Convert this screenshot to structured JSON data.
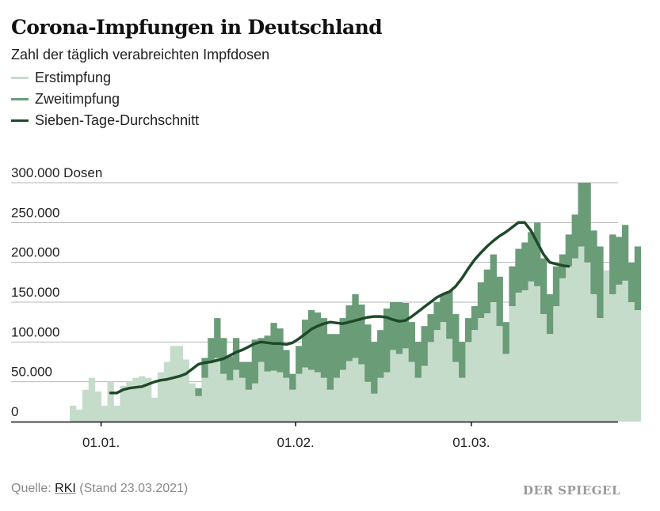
{
  "header": {
    "title": "Corona-Impfungen in Deutschland",
    "subtitle": "Zahl der täglich verabreichten Impfdosen"
  },
  "legend": [
    {
      "label": "Erstimpfung",
      "color": "#c6dccb"
    },
    {
      "label": "Zweitimpfung",
      "color": "#6a9c78"
    },
    {
      "label": "Sieben-Tage-Durchschnitt",
      "color": "#1f4a2a"
    }
  ],
  "footer": {
    "source_prefix": "Quelle: ",
    "source_link": "RKI",
    "source_suffix": " (Stand 23.03.2021)",
    "brand": "DER SPIEGEL"
  },
  "chart_data": {
    "type": "bar",
    "title": "Corona-Impfungen in Deutschland",
    "subtitle": "Zahl der täglich verabreichten Impfdosen",
    "xlabel": "",
    "ylabel": "Dosen",
    "ylim": [
      0,
      300000
    ],
    "yticks": [
      0,
      50000,
      100000,
      150000,
      200000,
      250000,
      300000
    ],
    "ytick_labels": [
      "0",
      "50.000",
      "100.000",
      "150.000",
      "200.000",
      "250.000",
      "300.000 Dosen"
    ],
    "xticks": [
      {
        "day_index": 5,
        "label": "01.01."
      },
      {
        "day_index": 36,
        "label": "01.02."
      },
      {
        "day_index": 64,
        "label": "01.03."
      }
    ],
    "grid": true,
    "stacked": true,
    "start_date": "27.12.2020",
    "series": [
      {
        "name": "Erstimpfung",
        "color": "#c6dccb",
        "values": [
          20000,
          15000,
          40000,
          55000,
          38000,
          20000,
          50000,
          20000,
          45000,
          50000,
          55000,
          57000,
          55000,
          30000,
          62000,
          75000,
          95000,
          95000,
          78000,
          48000,
          32000,
          55000,
          75000,
          80000,
          60000,
          52000,
          65000,
          55000,
          40000,
          48000,
          75000,
          63000,
          64000,
          62000,
          55000,
          40000,
          60000,
          68000,
          65000,
          62000,
          55000,
          40000,
          55000,
          65000,
          76000,
          80000,
          72000,
          50000,
          35000,
          55000,
          62000,
          90000,
          85000,
          92000,
          75000,
          55000,
          70000,
          100000,
          115000,
          125000,
          104000,
          75000,
          55000,
          100000,
          115000,
          130000,
          136000,
          150000,
          120000,
          85000,
          145000,
          162000,
          165000,
          176000,
          170000,
          135000,
          110000,
          145000,
          180000,
          195000,
          205000,
          220000,
          200000,
          160000,
          130000,
          190000,
          160000,
          172000,
          177000,
          150000,
          140000
        ],
        "values_note": "estimated from gridlines"
      },
      {
        "name": "Zweitimpfung",
        "color": "#6a9c78",
        "values": [
          0,
          0,
          0,
          0,
          0,
          0,
          0,
          0,
          0,
          0,
          0,
          0,
          0,
          0,
          0,
          0,
          0,
          0,
          0,
          0,
          10000,
          25000,
          30000,
          50000,
          45000,
          30000,
          40000,
          20000,
          35000,
          55000,
          30000,
          45000,
          60000,
          55000,
          35000,
          20000,
          35000,
          60000,
          75000,
          75000,
          75000,
          70000,
          55000,
          65000,
          70000,
          80000,
          75000,
          72000,
          65000,
          60000,
          80000,
          60000,
          65000,
          57000,
          50000,
          45000,
          50000,
          35000,
          35000,
          35000,
          60000,
          60000,
          45000,
          30000,
          30000,
          45000,
          55000,
          60000,
          62000,
          40000,
          50000,
          55000,
          60000,
          62000,
          80000,
          70000,
          50000,
          50000,
          30000,
          40000,
          55000,
          80000,
          100000,
          80000,
          90000,
          0,
          75000,
          60000,
          70000,
          50000,
          80000
        ],
        "values_note": "estimated from gridlines"
      },
      {
        "name": "Sieben-Tage-Durchschnitt",
        "color": "#1f4a2a",
        "type": "line",
        "start_day_index": 6,
        "values": [
          36000,
          36000,
          40000,
          42000,
          43000,
          44000,
          47000,
          50000,
          52000,
          53000,
          55000,
          57000,
          60000,
          66000,
          72000,
          74000,
          75000,
          77000,
          79000,
          83000,
          87000,
          90000,
          94000,
          98000,
          100000,
          99000,
          98000,
          98000,
          97000,
          99000,
          104000,
          110000,
          116000,
          120000,
          123000,
          125000,
          124000,
          123000,
          125000,
          127000,
          129000,
          131000,
          132000,
          132000,
          131000,
          128000,
          126000,
          127000,
          132000,
          138000,
          144000,
          150000,
          156000,
          160000,
          163000,
          170000,
          180000,
          192000,
          203000,
          212000,
          220000,
          227000,
          233000,
          238000,
          244000,
          250000,
          250000,
          240000,
          225000,
          210000,
          200000,
          198000,
          196000,
          195000
        ]
      }
    ]
  }
}
